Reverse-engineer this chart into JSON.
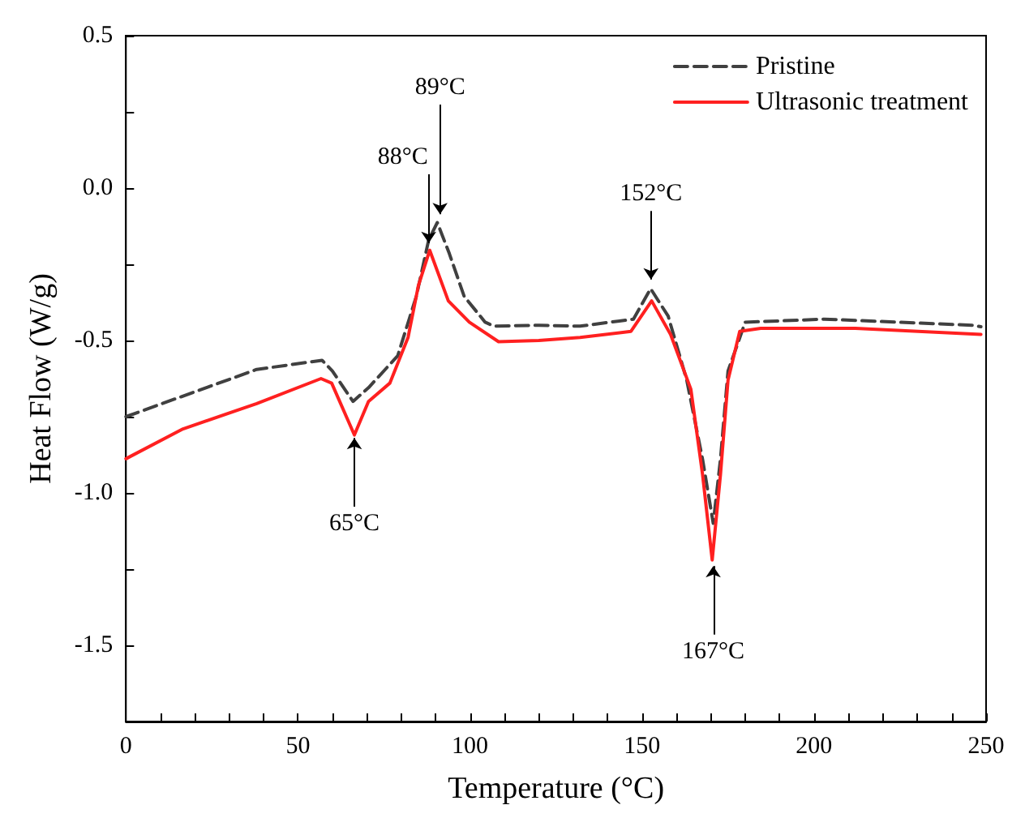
{
  "chart_data": {
    "type": "line",
    "xlabel": "Temperature (°C)",
    "ylabel": "Heat Flow (W/g)",
    "xlim": [
      0,
      250
    ],
    "ylim": [
      -1.75,
      0.5
    ],
    "xticks": [
      0,
      {
        "value": 10,
        "label": null
      },
      {
        "value": 20,
        "label": null
      },
      {
        "value": 30,
        "label": null
      },
      {
        "value": 40,
        "label": null
      },
      50,
      {
        "value": 60,
        "label": null
      },
      {
        "value": 70,
        "label": null
      },
      {
        "value": 80,
        "label": null
      },
      {
        "value": 90,
        "label": null
      },
      100,
      {
        "value": 110,
        "label": null
      },
      {
        "value": 120,
        "label": null
      },
      {
        "value": 130,
        "label": null
      },
      {
        "value": 140,
        "label": null
      },
      150,
      {
        "value": 160,
        "label": null
      },
      {
        "value": 170,
        "label": null
      },
      {
        "value": 180,
        "label": null
      },
      {
        "value": 190,
        "label": null
      },
      200,
      {
        "value": 210,
        "label": null
      },
      {
        "value": 220,
        "label": null
      },
      {
        "value": 230,
        "label": null
      },
      {
        "value": 240,
        "label": null
      },
      250
    ],
    "yticks": [
      {
        "value": -1.75,
        "label": null
      },
      -1.5,
      {
        "value": -1.25,
        "label": null
      },
      {
        "value": -1.0,
        "label": "-1.0"
      },
      {
        "value": -0.75,
        "label": null
      },
      -0.5,
      {
        "value": -0.25,
        "label": null
      },
      {
        "value": 0,
        "label": "0.0"
      },
      {
        "value": 0.25,
        "label": null
      },
      0.5
    ],
    "grid": false,
    "legend": "top right",
    "marker": "none",
    "series": [
      {
        "name": "Pristine",
        "color": "#404040",
        "line_style": "dashed",
        "x": [
          0,
          38,
          57,
          60,
          66,
          70.5,
          79,
          84.4,
          88,
          90.5,
          94,
          98.3,
          104.4,
          107,
          120,
          132,
          147.5,
          152.5,
          157.6,
          163,
          167.6,
          170.7,
          172.8,
          175,
          180,
          203,
          246,
          248.5
        ],
        "values": [
          -0.75,
          -0.595,
          -0.565,
          -0.6,
          -0.7,
          -0.655,
          -0.55,
          -0.355,
          -0.17,
          -0.113,
          -0.215,
          -0.355,
          -0.44,
          -0.453,
          -0.45,
          -0.453,
          -0.43,
          -0.33,
          -0.42,
          -0.63,
          -0.89,
          -1.1,
          -0.89,
          -0.6,
          -0.44,
          -0.43,
          -0.45,
          -0.455
        ]
      },
      {
        "name": "Ultrasonic treatment",
        "color": "#ff2020",
        "line_style": "solid",
        "x": [
          0,
          16.6,
          38,
          56.7,
          59.8,
          66.4,
          70.5,
          76.7,
          82,
          85,
          88.3,
          93.7,
          99.8,
          108.3,
          120,
          132,
          146.8,
          152.8,
          158.3,
          164.2,
          167.6,
          170.4,
          172.8,
          175,
          178.4,
          184.5,
          212,
          248.5
        ],
        "values": [
          -0.888,
          -0.79,
          -0.707,
          -0.625,
          -0.64,
          -0.81,
          -0.7,
          -0.64,
          -0.49,
          -0.32,
          -0.204,
          -0.37,
          -0.44,
          -0.504,
          -0.5,
          -0.49,
          -0.47,
          -0.37,
          -0.48,
          -0.66,
          -0.94,
          -1.22,
          -0.94,
          -0.63,
          -0.47,
          -0.46,
          -0.46,
          -0.48
        ]
      }
    ],
    "annotations": [
      {
        "text": "65°C",
        "x": 66.4,
        "y": -0.82
      },
      {
        "text": "88°C",
        "x": 88,
        "y": -0.18
      },
      {
        "text": "89°C",
        "x": 91.3,
        "y": -0.086
      },
      {
        "text": "152°C",
        "x": 152.6,
        "y": -0.3
      },
      {
        "text": "167°C",
        "x": 170.7,
        "y": -1.24
      }
    ]
  }
}
